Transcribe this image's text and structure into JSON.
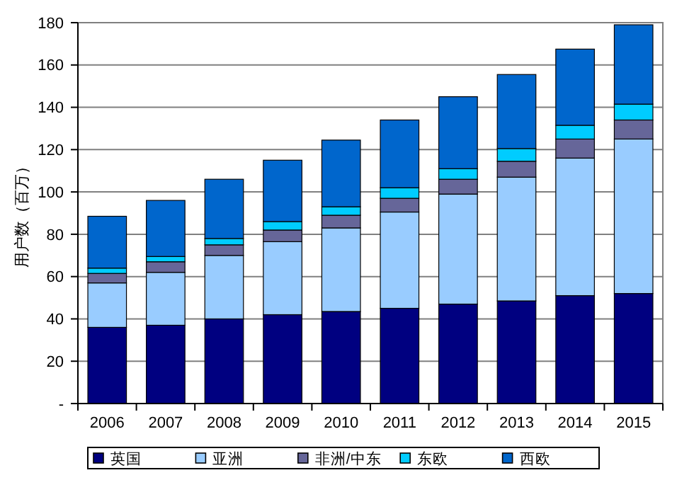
{
  "chart_data": {
    "type": "bar",
    "stacked": true,
    "ylabel": "用户数（百万）",
    "categories": [
      "2006",
      "2007",
      "2008",
      "2009",
      "2010",
      "2011",
      "2012",
      "2013",
      "2014",
      "2015"
    ],
    "series": [
      {
        "name": "英国",
        "color": "#000080",
        "values": [
          36,
          37,
          40,
          42,
          43.5,
          45,
          47,
          48.5,
          51,
          52
        ]
      },
      {
        "name": "亚洲",
        "color": "#99ccff",
        "values": [
          21,
          25,
          30,
          34.5,
          39.5,
          45.5,
          52,
          58.5,
          65,
          73
        ]
      },
      {
        "name": "非洲/中东",
        "color": "#666699",
        "values": [
          4.5,
          5,
          5,
          5.5,
          6,
          6.5,
          7,
          7.5,
          9,
          9
        ]
      },
      {
        "name": "东欧",
        "color": "#00ccff",
        "values": [
          2.5,
          2.5,
          3,
          4,
          4,
          5,
          5,
          6,
          6.5,
          7.5
        ]
      },
      {
        "name": "西欧",
        "color": "#0066cc",
        "values": [
          24.5,
          26.5,
          28,
          29,
          31.5,
          32,
          34,
          35,
          36,
          37.5
        ]
      }
    ],
    "ylim": [
      0,
      180
    ],
    "yticks": [
      {
        "value": 0,
        "label": "-"
      },
      20,
      40,
      60,
      80,
      100,
      120,
      140,
      160,
      180
    ],
    "grid": "y",
    "legend": "bottom"
  }
}
